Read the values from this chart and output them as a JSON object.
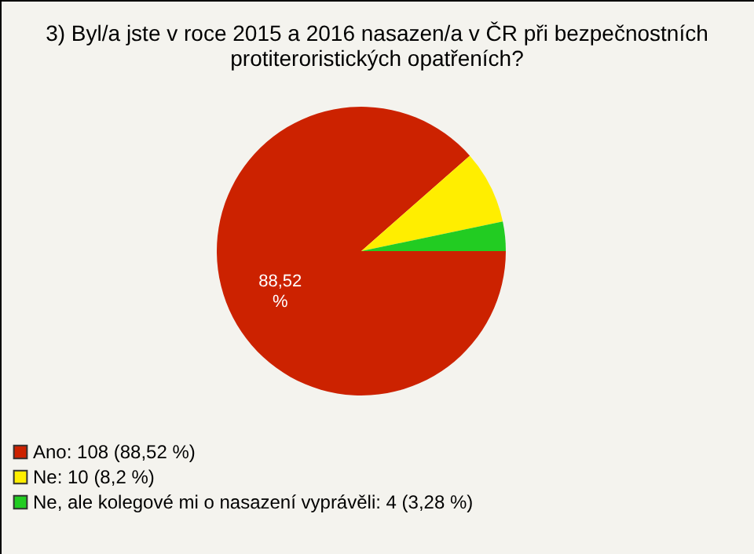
{
  "chart_data": {
    "type": "pie",
    "title": "3) Byl/a jste v roce 2015 a 2016 nasazen/a v ČR při bezpečnostních\nprotiteroristických opatřeních?",
    "categories": [
      "Ano: 108 (88,52 %)",
      "Ne: 10 (8,2 %)",
      "Ne, ale kolegové mi o nasazení vyprávěli: 4 (3,28 %)"
    ],
    "values": [
      88.52,
      8.2,
      3.28
    ],
    "colors": [
      "#cc2200",
      "#ffee00",
      "#22cc22"
    ],
    "value_labels": [
      "88,52\n%",
      null,
      null
    ],
    "legend": "bottom left"
  }
}
